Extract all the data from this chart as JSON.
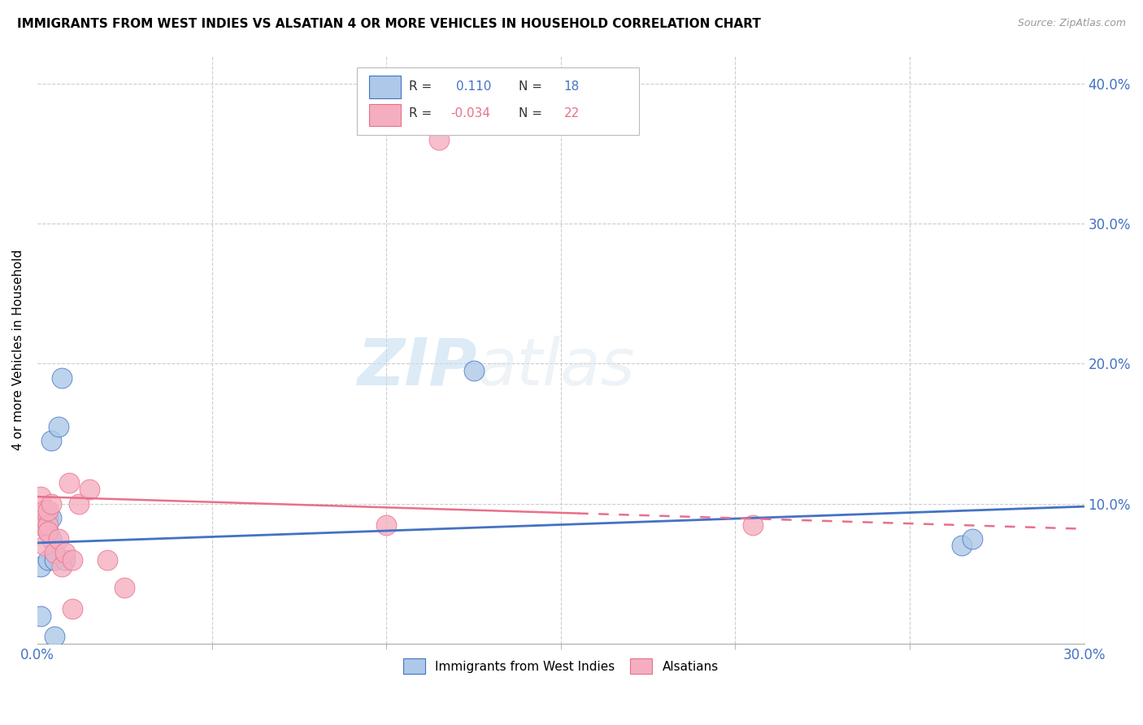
{
  "title": "IMMIGRANTS FROM WEST INDIES VS ALSATIAN 4 OR MORE VEHICLES IN HOUSEHOLD CORRELATION CHART",
  "source": "Source: ZipAtlas.com",
  "ylabel": "4 or more Vehicles in Household",
  "xlim": [
    0.0,
    0.3
  ],
  "ylim": [
    0.0,
    0.42
  ],
  "blue_R": 0.11,
  "blue_N": 18,
  "pink_R": -0.034,
  "pink_N": 22,
  "blue_color": "#adc8e8",
  "pink_color": "#f5aec0",
  "trend_blue": "#4472c4",
  "trend_pink": "#e8708a",
  "watermark_zip": "ZIP",
  "watermark_atlas": "atlas",
  "blue_line_y0": 0.072,
  "blue_line_y1": 0.098,
  "pink_line_y0": 0.105,
  "pink_line_y1": 0.082,
  "pink_line_solid_x1": 0.155,
  "blue_points_x": [
    0.001,
    0.001,
    0.002,
    0.002,
    0.003,
    0.003,
    0.003,
    0.004,
    0.004,
    0.004,
    0.005,
    0.005,
    0.006,
    0.007,
    0.008,
    0.125,
    0.265,
    0.268
  ],
  "blue_points_y": [
    0.055,
    0.02,
    0.085,
    0.09,
    0.08,
    0.06,
    0.09,
    0.09,
    0.075,
    0.145,
    0.06,
    0.005,
    0.155,
    0.19,
    0.06,
    0.195,
    0.07,
    0.075
  ],
  "pink_points_x": [
    0.001,
    0.001,
    0.002,
    0.002,
    0.003,
    0.003,
    0.003,
    0.004,
    0.005,
    0.006,
    0.007,
    0.008,
    0.009,
    0.01,
    0.01,
    0.012,
    0.015,
    0.02,
    0.025,
    0.1,
    0.115,
    0.205
  ],
  "pink_points_y": [
    0.105,
    0.085,
    0.095,
    0.07,
    0.085,
    0.08,
    0.095,
    0.1,
    0.065,
    0.075,
    0.055,
    0.065,
    0.115,
    0.06,
    0.025,
    0.1,
    0.11,
    0.06,
    0.04,
    0.085,
    0.36,
    0.085
  ]
}
